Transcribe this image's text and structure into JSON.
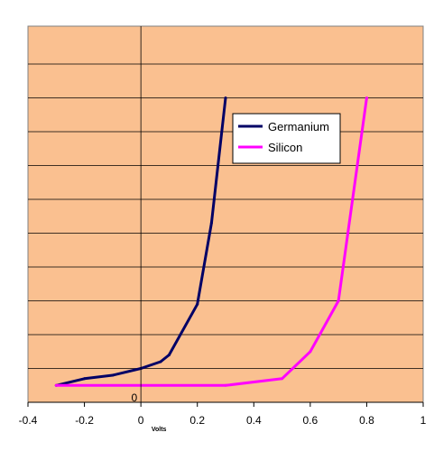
{
  "chart_data": {
    "type": "line",
    "title": "",
    "xlabel": "Volts",
    "ylabel": "",
    "xlim": [
      -0.4,
      1
    ],
    "ylim": [
      0,
      10
    ],
    "x_ticks": [
      -0.4,
      -0.2,
      0,
      0.2,
      0.4,
      0.6,
      0.8,
      1
    ],
    "x_tick_labels": [
      "-0.4",
      "-0.2",
      "0",
      "0.2",
      "0.4",
      "0.6",
      "0.8",
      "1"
    ],
    "y_tick_labels": [
      {
        "value": 0,
        "label": "0"
      }
    ],
    "y_gridlines": [
      1,
      2,
      3,
      4,
      5,
      6,
      7,
      8,
      9,
      10
    ],
    "grid": true,
    "legend_position": "top-right",
    "series": [
      {
        "name": "Germanium",
        "color": "#000066",
        "x": [
          -0.3,
          -0.2,
          -0.1,
          0.0,
          0.07,
          0.1,
          0.2,
          0.25,
          0.3
        ],
        "y": [
          0.5,
          0.7,
          0.8,
          1.0,
          1.2,
          1.4,
          2.9,
          5.3,
          9.0
        ]
      },
      {
        "name": "Silicon",
        "color": "#ff00ff",
        "x": [
          -0.3,
          0.3,
          0.5,
          0.6,
          0.7,
          0.8
        ],
        "y": [
          0.5,
          0.5,
          0.7,
          1.5,
          3.0,
          9.0
        ]
      }
    ],
    "colors": {
      "plot_background": "#fac090",
      "gridline": "#000000",
      "axis": "#000000"
    }
  }
}
